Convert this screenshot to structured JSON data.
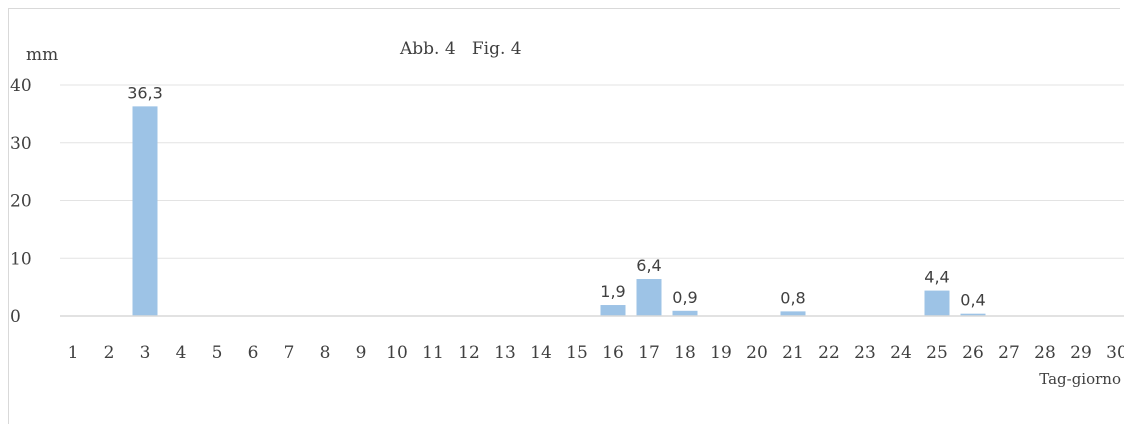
{
  "chart_data": {
    "type": "bar",
    "title": "Abb. 4   Fig. 4",
    "ylabel": "mm",
    "xlabel": "Tag-giorno",
    "ylim": [
      0,
      40
    ],
    "yticks": [
      0,
      10,
      20,
      30,
      40
    ],
    "grid": true,
    "legend": "none",
    "bar_color": "#9dc3e6",
    "categories": [
      "1",
      "2",
      "3",
      "4",
      "5",
      "6",
      "7",
      "8",
      "9",
      "10",
      "11",
      "12",
      "13",
      "14",
      "15",
      "16",
      "17",
      "18",
      "19",
      "20",
      "21",
      "22",
      "23",
      "24",
      "25",
      "26",
      "27",
      "28",
      "29",
      "30"
    ],
    "values": [
      0,
      0,
      36.3,
      0,
      0,
      0,
      0,
      0,
      0,
      0,
      0,
      0,
      0,
      0,
      0,
      1.9,
      6.4,
      0.9,
      0,
      0,
      0.8,
      0,
      0,
      0,
      4.4,
      0.4,
      0,
      0,
      0,
      0
    ],
    "data_labels": [
      "",
      "",
      "36,3",
      "",
      "",
      "",
      "",
      "",
      "",
      "",
      "",
      "",
      "",
      "",
      "",
      "1,9",
      "6,4",
      "0,9",
      "",
      "",
      "0,8",
      "",
      "",
      "",
      "4,4",
      "0,4",
      "",
      "",
      "",
      ""
    ]
  }
}
